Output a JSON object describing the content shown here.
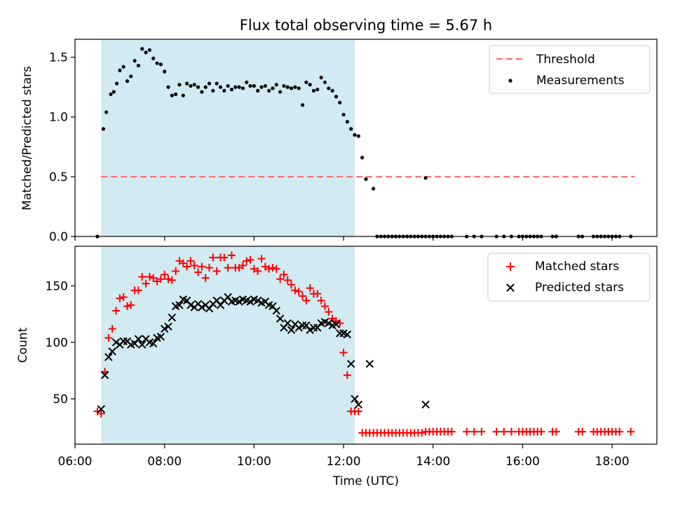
{
  "title": "Flux total observing time = 5.67 h",
  "chart_data": [
    {
      "type": "scatter",
      "panel": "top",
      "ylabel": "Matched/Predicted stars",
      "xlabel": "",
      "xlim": [
        "06:00",
        "19:00"
      ],
      "ylim": [
        0,
        1.65
      ],
      "yticks": [
        0.0,
        0.5,
        1.0,
        1.5
      ],
      "ytick_labels": [
        "0.0",
        "0.5",
        "1.0",
        "1.5"
      ],
      "grid": false,
      "legend_position": "top-right",
      "shaded_region": {
        "from": "06:35",
        "to": "12:15",
        "color": "#add8e6"
      },
      "threshold": {
        "name": "Threshold",
        "y": 0.5,
        "from": "06:35",
        "to": "18:30",
        "color": "#ff6666"
      },
      "series": [
        {
          "name": "Measurements",
          "color": "#000000",
          "x": [
            "06:30",
            "06:38",
            "06:42",
            "06:48",
            "06:52",
            "06:56",
            "07:00",
            "07:05",
            "07:10",
            "07:15",
            "07:20",
            "07:25",
            "07:30",
            "07:35",
            "07:40",
            "07:45",
            "07:50",
            "07:55",
            "08:00",
            "08:05",
            "08:10",
            "08:15",
            "08:20",
            "08:25",
            "08:30",
            "08:35",
            "08:40",
            "08:45",
            "08:50",
            "08:55",
            "09:00",
            "09:05",
            "09:10",
            "09:15",
            "09:20",
            "09:25",
            "09:30",
            "09:35",
            "09:40",
            "09:45",
            "09:50",
            "09:55",
            "10:00",
            "10:05",
            "10:10",
            "10:15",
            "10:20",
            "10:25",
            "10:30",
            "10:35",
            "10:40",
            "10:45",
            "10:50",
            "10:55",
            "11:00",
            "11:05",
            "11:10",
            "11:15",
            "11:20",
            "11:25",
            "11:30",
            "11:35",
            "11:40",
            "11:45",
            "11:50",
            "11:55",
            "12:00",
            "12:05",
            "12:10",
            "12:15",
            "12:20",
            "12:25",
            "12:30",
            "12:40",
            "12:45",
            "12:50",
            "12:55",
            "13:00",
            "13:05",
            "13:10",
            "13:15",
            "13:20",
            "13:25",
            "13:30",
            "13:35",
            "13:40",
            "13:45",
            "13:50",
            "13:55",
            "14:00",
            "14:05",
            "14:10",
            "14:15",
            "14:20",
            "14:25",
            "14:45",
            "14:55",
            "15:05",
            "15:25",
            "15:35",
            "15:45",
            "15:55",
            "16:00",
            "16:05",
            "16:10",
            "16:15",
            "16:20",
            "16:25",
            "16:40",
            "16:45",
            "17:15",
            "17:20",
            "17:35",
            "17:40",
            "17:45",
            "17:50",
            "17:55",
            "18:00",
            "18:05",
            "18:10",
            "18:25"
          ],
          "y": [
            0.0,
            0.9,
            1.04,
            1.19,
            1.21,
            1.28,
            1.39,
            1.42,
            1.3,
            1.34,
            1.47,
            1.43,
            1.57,
            1.54,
            1.56,
            1.49,
            1.45,
            1.44,
            1.38,
            1.25,
            1.18,
            1.19,
            1.27,
            1.18,
            1.28,
            1.26,
            1.27,
            1.25,
            1.21,
            1.25,
            1.28,
            1.22,
            1.28,
            1.25,
            1.22,
            1.26,
            1.23,
            1.25,
            1.25,
            1.24,
            1.29,
            1.26,
            1.26,
            1.22,
            1.25,
            1.26,
            1.22,
            1.24,
            1.27,
            1.21,
            1.26,
            1.25,
            1.24,
            1.25,
            1.24,
            1.1,
            1.29,
            1.27,
            1.22,
            1.23,
            1.33,
            1.29,
            1.24,
            1.22,
            1.17,
            1.12,
            1.02,
            0.96,
            0.9,
            0.85,
            0.84,
            0.66,
            0.48,
            0.4,
            0.0,
            0.0,
            0.0,
            0.0,
            0.0,
            0.0,
            0.0,
            0.0,
            0.0,
            0.0,
            0.0,
            0.0,
            0.0,
            0.0,
            0.0,
            0.0,
            0.0,
            0.0,
            0.0,
            0.0,
            0.0,
            0.0,
            0.0,
            0.0,
            0.0,
            0.0,
            0.0,
            0.0,
            0.0,
            0.0,
            0.0,
            0.0,
            0.0,
            0.0,
            0.0,
            0.0,
            0.0,
            0.0,
            0.0,
            0.0,
            0.0,
            0.0,
            0.0,
            0.0,
            0.0,
            0.0,
            0.0
          ],
          "extra_points": [
            {
              "x": "13:50",
              "y": 0.49
            }
          ]
        }
      ]
    },
    {
      "type": "scatter",
      "panel": "bottom",
      "xlabel": "Time (UTC)",
      "ylabel": "Count",
      "xlim": [
        "06:00",
        "19:00"
      ],
      "ylim": [
        10,
        185
      ],
      "xticks": [
        "06:00",
        "08:00",
        "10:00",
        "12:00",
        "14:00",
        "16:00",
        "18:00"
      ],
      "yticks": [
        50,
        100,
        150
      ],
      "ytick_labels": [
        "50",
        "100",
        "150"
      ],
      "grid": false,
      "legend_position": "top-right",
      "shaded_region": {
        "from": "06:35",
        "to": "12:15",
        "color": "#add8e6"
      },
      "series": [
        {
          "name": "Matched stars",
          "marker": "plus",
          "color": "#ff0000",
          "x": [
            "06:30",
            "06:35",
            "06:40",
            "06:45",
            "06:50",
            "06:55",
            "07:00",
            "07:05",
            "07:10",
            "07:15",
            "07:20",
            "07:25",
            "07:30",
            "07:35",
            "07:40",
            "07:45",
            "07:50",
            "07:55",
            "08:00",
            "08:05",
            "08:10",
            "08:15",
            "08:20",
            "08:25",
            "08:30",
            "08:35",
            "08:40",
            "08:45",
            "08:50",
            "08:55",
            "09:00",
            "09:05",
            "09:10",
            "09:15",
            "09:20",
            "09:25",
            "09:30",
            "09:35",
            "09:40",
            "09:45",
            "09:50",
            "09:55",
            "10:00",
            "10:05",
            "10:10",
            "10:15",
            "10:20",
            "10:25",
            "10:30",
            "10:35",
            "10:40",
            "10:45",
            "10:50",
            "10:55",
            "11:00",
            "11:05",
            "11:10",
            "11:15",
            "11:20",
            "11:25",
            "11:30",
            "11:35",
            "11:40",
            "11:45",
            "11:50",
            "11:55",
            "12:00",
            "12:05",
            "12:10",
            "12:15",
            "12:20",
            "12:25",
            "12:30",
            "12:35",
            "12:40",
            "12:45",
            "12:50",
            "12:55",
            "13:00",
            "13:05",
            "13:10",
            "13:15",
            "13:20",
            "13:25",
            "13:30",
            "13:35",
            "13:40",
            "13:45",
            "13:50",
            "13:55",
            "14:00",
            "14:05",
            "14:10",
            "14:15",
            "14:20",
            "14:25",
            "14:45",
            "14:55",
            "15:05",
            "15:25",
            "15:35",
            "15:45",
            "15:55",
            "16:00",
            "16:05",
            "16:10",
            "16:15",
            "16:20",
            "16:25",
            "16:40",
            "16:45",
            "17:15",
            "17:20",
            "17:35",
            "17:40",
            "17:45",
            "17:50",
            "17:55",
            "18:00",
            "18:05",
            "18:10",
            "18:25"
          ],
          "y": [
            39,
            37,
            74,
            104,
            112,
            128,
            139,
            140,
            132,
            133,
            146,
            146,
            158,
            152,
            158,
            157,
            154,
            156,
            160,
            156,
            155,
            163,
            172,
            170,
            167,
            172,
            168,
            162,
            167,
            157,
            166,
            175,
            163,
            175,
            175,
            166,
            177,
            166,
            166,
            168,
            172,
            173,
            165,
            163,
            174,
            167,
            165,
            166,
            165,
            156,
            160,
            155,
            151,
            146,
            145,
            141,
            137,
            148,
            143,
            143,
            137,
            132,
            127,
            121,
            119,
            117,
            91,
            71,
            39,
            39,
            39,
            20,
            20,
            20,
            20,
            20,
            20,
            20,
            20,
            20,
            20,
            20,
            20,
            20,
            20,
            20,
            20,
            20,
            21,
            21,
            21,
            21,
            21,
            21,
            21,
            21,
            21,
            21,
            21,
            21,
            21,
            21,
            21,
            21,
            21,
            21,
            21,
            21,
            21,
            21,
            21,
            21,
            21,
            21,
            21,
            21,
            21,
            21,
            21,
            21,
            21,
            21
          ]
        },
        {
          "name": "Predicted stars",
          "marker": "x",
          "color": "#000000",
          "x": [
            "06:35",
            "06:40",
            "06:45",
            "06:50",
            "06:55",
            "07:00",
            "07:05",
            "07:10",
            "07:15",
            "07:20",
            "07:25",
            "07:30",
            "07:35",
            "07:40",
            "07:45",
            "07:50",
            "07:55",
            "08:00",
            "08:05",
            "08:10",
            "08:15",
            "08:20",
            "08:25",
            "08:30",
            "08:35",
            "08:40",
            "08:45",
            "08:50",
            "08:55",
            "09:00",
            "09:05",
            "09:10",
            "09:15",
            "09:20",
            "09:25",
            "09:30",
            "09:35",
            "09:40",
            "09:45",
            "09:50",
            "09:55",
            "10:00",
            "10:05",
            "10:10",
            "10:15",
            "10:20",
            "10:25",
            "10:30",
            "10:35",
            "10:40",
            "10:45",
            "10:50",
            "10:55",
            "11:00",
            "11:05",
            "11:10",
            "11:15",
            "11:20",
            "11:25",
            "11:30",
            "11:35",
            "11:40",
            "11:45",
            "11:50",
            "11:55",
            "12:00",
            "12:05",
            "12:10",
            "12:15",
            "12:20",
            "12:35",
            "13:50"
          ],
          "y": [
            41,
            71,
            87,
            92,
            100,
            98,
            101,
            101,
            98,
            99,
            103,
            98,
            103,
            100,
            99,
            104,
            105,
            112,
            114,
            122,
            132,
            133,
            138,
            137,
            133,
            131,
            134,
            131,
            133,
            130,
            134,
            137,
            133,
            137,
            140,
            136,
            137,
            136,
            138,
            137,
            136,
            138,
            137,
            135,
            136,
            133,
            132,
            128,
            121,
            113,
            117,
            111,
            116,
            113,
            115,
            115,
            111,
            113,
            113,
            117,
            118,
            117,
            115,
            116,
            108,
            108,
            107,
            81,
            50,
            45,
            81,
            45
          ]
        }
      ]
    }
  ],
  "legend_top": {
    "threshold_label": "Threshold",
    "measurements_label": "Measurements"
  },
  "legend_bottom": {
    "matched_label": "Matched stars",
    "predicted_label": "Predicted stars"
  },
  "axes": {
    "top_ylabel": "Matched/Predicted stars",
    "bottom_ylabel": "Count",
    "bottom_xlabel": "Time (UTC)",
    "xtick_labels": [
      "06:00",
      "08:00",
      "10:00",
      "12:00",
      "14:00",
      "16:00",
      "18:00"
    ]
  },
  "colors": {
    "shade": "#add8e6",
    "threshold": "#ff6666",
    "matched": "#ff0000",
    "predicted": "#000000",
    "measurement": "#000000"
  }
}
